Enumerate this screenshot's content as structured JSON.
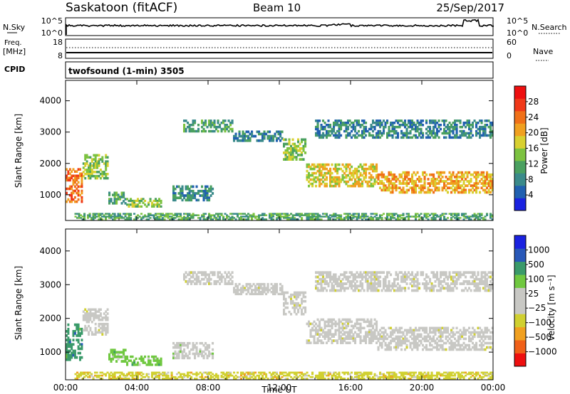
{
  "header": {
    "station": "Saskatoon (fitACF)",
    "beam": "Beam 10",
    "date": "25/Sep/2017"
  },
  "labels": {
    "nsky": "N.Sky",
    "nsearch": "N.Search",
    "freq": "Freq.",
    "mhz": "[MHz]",
    "nave": "Nave",
    "cpid": "CPID",
    "program": "twofsound (1-min) 3505"
  },
  "noise_axis": {
    "left_ticks": [
      "10^5",
      "10^0"
    ],
    "right_ticks": [
      "10^5",
      "10^0"
    ]
  },
  "freq_axis": {
    "left_ticks": [
      "18",
      "8"
    ],
    "right_ticks": [
      "60",
      "0"
    ]
  },
  "colors": {
    "power_scale": [
      "#1a22e0",
      "#2060b0",
      "#3a8a8a",
      "#4aa060",
      "#7cc240",
      "#d8d030",
      "#f0a020",
      "#f07018",
      "#f03818",
      "#ee0f0f"
    ],
    "velocity_scale": [
      "#ee0f0f",
      "#f06018",
      "#f0a020",
      "#d0d030",
      "#c8c8c4",
      "#c8c8c4",
      "#70c840",
      "#3a9a6a",
      "#2858b8",
      "#1a22e0"
    ],
    "velocity_gray": "#c8c8c4"
  },
  "chart_data": [
    {
      "type": "heatmap",
      "title": "Power",
      "ylabel": "Slant Range [km]",
      "ylim": [
        180,
        4650
      ],
      "yticks": [
        "4000",
        "3000",
        "2000",
        "1000"
      ],
      "xlim": [
        0,
        24
      ],
      "xlabel": "",
      "colorbar": {
        "label": "Power [dB]",
        "range": [
          0,
          32
        ],
        "ticks": [
          "28",
          "24",
          "20",
          "16",
          "12",
          "8",
          "4"
        ]
      },
      "bands": [
        {
          "t": [
            0.0,
            0.95
          ],
          "r": [
            750,
            1850
          ],
          "level": 24
        },
        {
          "t": [
            0.95,
            2.4
          ],
          "r": [
            1500,
            2300
          ],
          "level": 14
        },
        {
          "t": [
            2.4,
            3.4
          ],
          "r": [
            700,
            1100
          ],
          "level": 12
        },
        {
          "t": [
            3.4,
            5.4
          ],
          "r": [
            600,
            900
          ],
          "level": 14
        },
        {
          "t": [
            6.0,
            8.3
          ],
          "r": [
            800,
            1300
          ],
          "level": 8
        },
        {
          "t": [
            6.6,
            9.4
          ],
          "r": [
            3000,
            3400
          ],
          "level": 10
        },
        {
          "t": [
            9.4,
            12.2
          ],
          "r": [
            2700,
            3050
          ],
          "level": 8
        },
        {
          "t": [
            12.2,
            13.5
          ],
          "r": [
            2100,
            2800
          ],
          "level": 14
        },
        {
          "t": [
            13.5,
            17.5
          ],
          "r": [
            1250,
            2000
          ],
          "level": 18
        },
        {
          "t": [
            17.5,
            24.0
          ],
          "r": [
            1050,
            1750
          ],
          "level": 20
        },
        {
          "t": [
            0.5,
            24.0
          ],
          "r": [
            200,
            420
          ],
          "level": 10
        },
        {
          "t": [
            14.0,
            24.0
          ],
          "r": [
            2800,
            3400
          ],
          "level": 8
        }
      ]
    },
    {
      "type": "heatmap",
      "title": "Velocity",
      "ylabel": "Slant Range [km]",
      "ylim": [
        180,
        4650
      ],
      "yticks": [
        "4000",
        "3000",
        "2000",
        "1000"
      ],
      "xlim": [
        0,
        24
      ],
      "xlabel": "Time UT",
      "xticks": [
        "00:00",
        "04:00",
        "08:00",
        "12:00",
        "16:00",
        "20:00",
        "00:00"
      ],
      "colorbar": {
        "label": "Velocity [m s⁻¹]",
        "ticks": [
          "1000",
          "500",
          "100",
          "25",
          "−25",
          "−100",
          "−500",
          "−1000"
        ]
      },
      "bands": [
        {
          "t": [
            0.0,
            0.95
          ],
          "r": [
            750,
            1850
          ],
          "level": 7
        },
        {
          "t": [
            0.95,
            2.4
          ],
          "r": [
            1500,
            2300
          ],
          "level": 4
        },
        {
          "t": [
            2.4,
            3.4
          ],
          "r": [
            700,
            1100
          ],
          "level": 6
        },
        {
          "t": [
            3.4,
            5.4
          ],
          "r": [
            600,
            900
          ],
          "level": 6
        },
        {
          "t": [
            6.0,
            8.3
          ],
          "r": [
            800,
            1300
          ],
          "level": 5
        },
        {
          "t": [
            6.6,
            9.4
          ],
          "r": [
            3000,
            3400
          ],
          "level": 4
        },
        {
          "t": [
            9.4,
            12.2
          ],
          "r": [
            2700,
            3050
          ],
          "level": 4
        },
        {
          "t": [
            12.2,
            13.5
          ],
          "r": [
            2100,
            2800
          ],
          "level": 4
        },
        {
          "t": [
            13.5,
            17.5
          ],
          "r": [
            1250,
            2000
          ],
          "level": 4
        },
        {
          "t": [
            17.5,
            24.0
          ],
          "r": [
            1050,
            1750
          ],
          "level": 4
        },
        {
          "t": [
            0.5,
            24.0
          ],
          "r": [
            200,
            420
          ],
          "level": 3
        },
        {
          "t": [
            14.0,
            24.0
          ],
          "r": [
            2800,
            3400
          ],
          "level": 4
        }
      ]
    }
  ]
}
